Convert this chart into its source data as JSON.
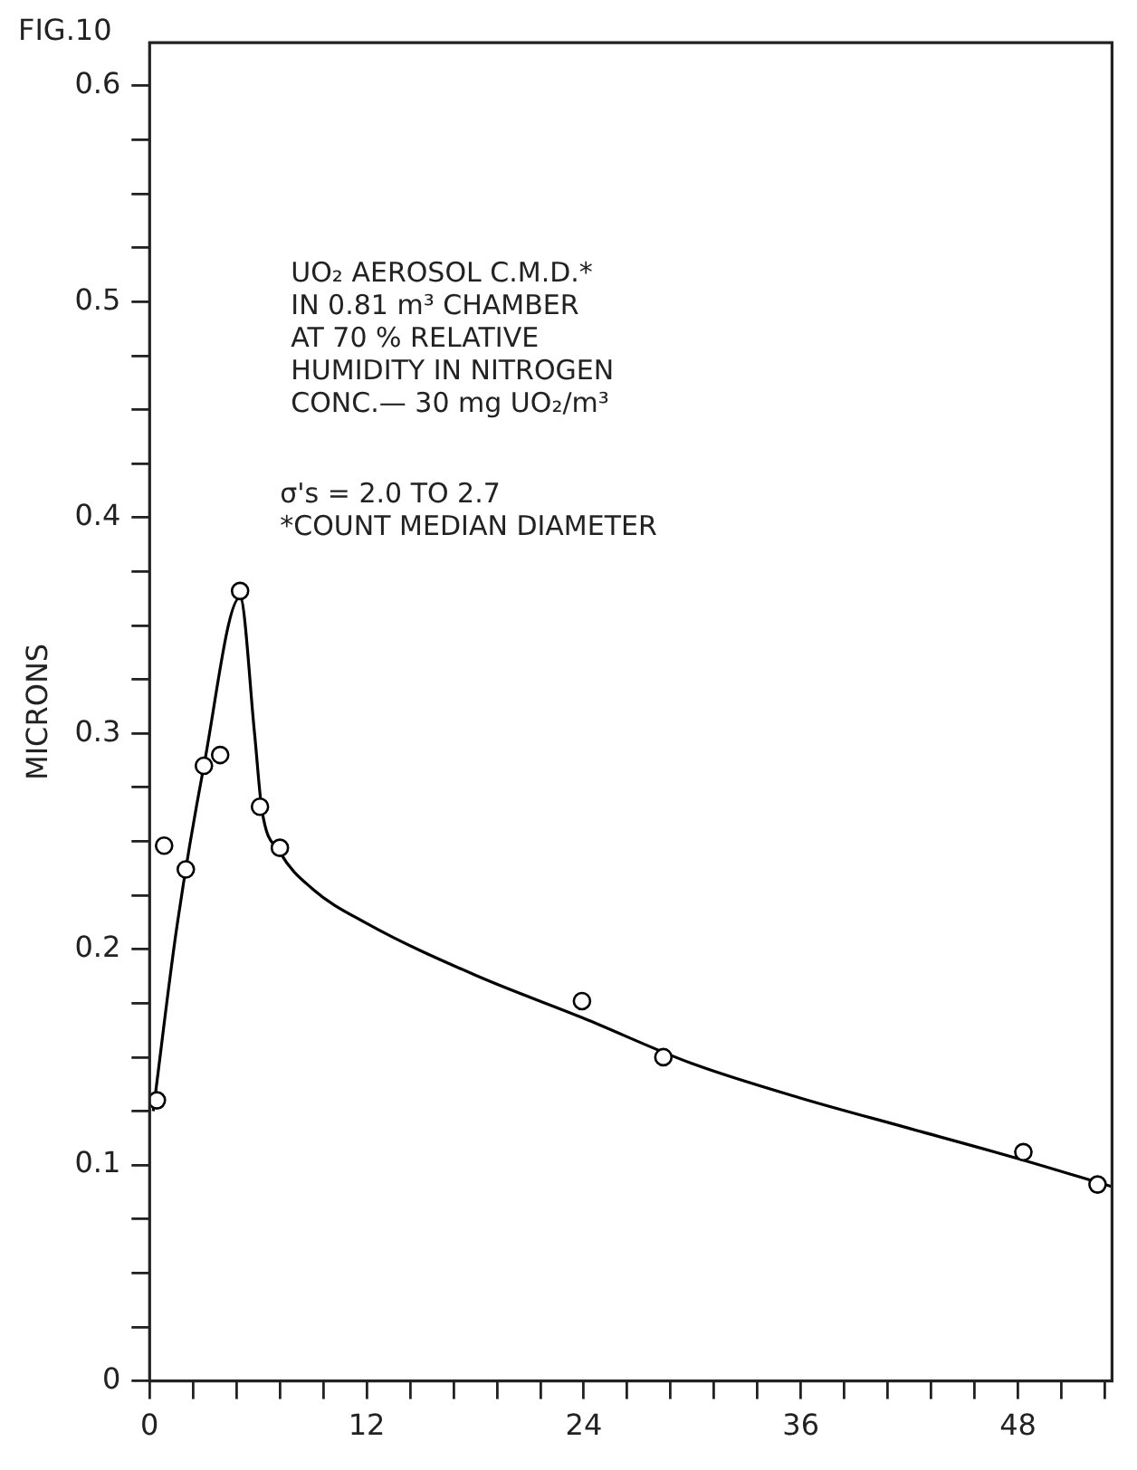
{
  "chart_data": {
    "type": "scatter",
    "ylabel": "MICRONS",
    "annotations": [
      "FIG.10",
      "UO₂ AEROSOL C.M.D.*\nIN 0.81 m³ CHAMBER\nAT 70 % RELATIVE\nHUMIDITY IN NITROGEN\nCONC.— 30 mg UO₂/m³",
      "σ's = 2.0 TO 2.7\n*COUNT MEDIAN DIAMETER"
    ],
    "xlim": [
      0,
      53.2
    ],
    "ylim": [
      0,
      0.62
    ],
    "xticks": [
      0,
      {
        "value": 2.4,
        "label": null
      },
      {
        "value": 4.8,
        "label": null
      },
      {
        "value": 7.2,
        "label": null
      },
      {
        "value": 9.6,
        "label": null
      },
      12,
      {
        "value": 14.4,
        "label": null
      },
      {
        "value": 16.8,
        "label": null
      },
      {
        "value": 19.2,
        "label": null
      },
      {
        "value": 21.6,
        "label": null
      },
      24,
      {
        "value": 26.4,
        "label": null
      },
      {
        "value": 28.8,
        "label": null
      },
      {
        "value": 31.2,
        "label": null
      },
      {
        "value": 33.6,
        "label": null
      },
      36,
      {
        "value": 38.4,
        "label": null
      },
      {
        "value": 40.8,
        "label": null
      },
      {
        "value": 43.2,
        "label": null
      },
      {
        "value": 45.6,
        "label": null
      },
      48,
      {
        "value": 50.4,
        "label": null
      },
      {
        "value": 52.8,
        "label": null
      }
    ],
    "yticks": [
      0,
      {
        "value": 0.025,
        "label": null
      },
      {
        "value": 0.05,
        "label": null
      },
      {
        "value": 0.075,
        "label": null
      },
      0.1,
      {
        "value": 0.125,
        "label": null
      },
      {
        "value": 0.15,
        "label": null
      },
      {
        "value": 0.175,
        "label": null
      },
      0.2,
      {
        "value": 0.225,
        "label": null
      },
      {
        "value": 0.25,
        "label": null
      },
      {
        "value": 0.275,
        "label": null
      },
      0.3,
      {
        "value": 0.325,
        "label": null
      },
      {
        "value": 0.35,
        "label": null
      },
      {
        "value": 0.375,
        "label": null
      },
      0.4,
      {
        "value": 0.425,
        "label": null
      },
      {
        "value": 0.45,
        "label": null
      },
      {
        "value": 0.475,
        "label": null
      },
      0.5,
      {
        "value": 0.525,
        "label": null
      },
      {
        "value": 0.55,
        "label": null
      },
      {
        "value": 0.575,
        "label": null
      },
      0.6
    ],
    "grid": false,
    "legend": false,
    "series": [
      {
        "type": "scatter",
        "color": "#000000",
        "marker": "circle",
        "x": [
          0.4,
          0.8,
          2.0,
          3.0,
          3.9,
          5.0,
          6.1,
          7.2,
          23.9,
          28.4,
          48.3,
          52.4
        ],
        "values": [
          0.13,
          0.248,
          0.237,
          0.285,
          0.29,
          0.366,
          0.266,
          0.247,
          0.176,
          0.15,
          0.106,
          0.091
        ]
      },
      {
        "type": "line",
        "color": "#000000",
        "marker": "none",
        "x": [
          0.2,
          1.5,
          3.0,
          5.0,
          5.8,
          6.2,
          7.2,
          9,
          12,
          18,
          24,
          30,
          36,
          42,
          48,
          53.2
        ],
        "values": [
          0.125,
          0.21,
          0.285,
          0.363,
          0.3,
          0.265,
          0.245,
          0.228,
          0.212,
          0.188,
          0.168,
          0.147,
          0.131,
          0.117,
          0.103,
          0.09
        ]
      }
    ]
  }
}
